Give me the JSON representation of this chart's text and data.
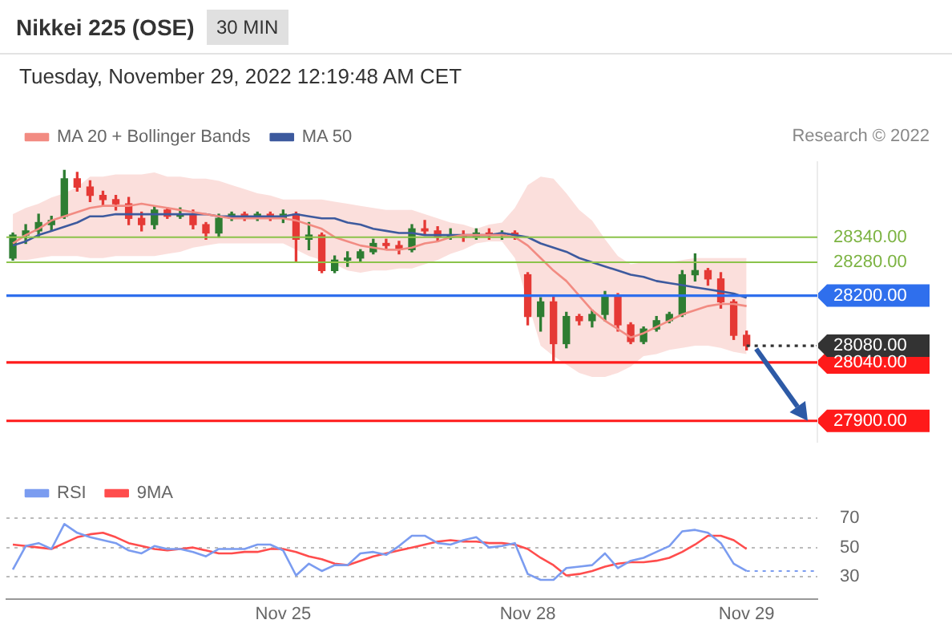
{
  "chart_data": [
    {
      "type": "candlestick",
      "title": "Nikkei 225 (OSE)",
      "subtitle": "Tuesday, November 29, 2022 12:19:48 AM CET",
      "annotations": [
        "30 MIN",
        "Research © 2022"
      ],
      "categories": [
        null,
        null,
        null,
        null,
        null,
        null,
        null,
        null,
        null,
        null,
        null,
        null,
        null,
        null,
        null,
        null,
        null,
        null,
        null,
        null,
        null,
        null,
        null,
        null,
        null,
        null,
        null,
        null,
        null,
        null,
        null,
        null,
        null,
        null,
        null,
        null,
        null,
        null,
        null,
        null,
        null,
        null,
        null,
        null,
        null,
        null,
        null,
        null,
        null,
        null,
        null,
        null,
        null,
        null,
        null,
        null,
        null,
        null,
        null,
        null,
        null,
        null,
        null
      ],
      "ohlc": [
        [
          28290,
          28350,
          28285,
          28345
        ],
        [
          28345,
          28370,
          28325,
          28355
        ],
        [
          28355,
          28395,
          28340,
          28375
        ],
        [
          28370,
          28390,
          28355,
          28380
        ],
        [
          28390,
          28500,
          28385,
          28480
        ],
        [
          28480,
          28495,
          28450,
          28460
        ],
        [
          28460,
          28475,
          28425,
          28440
        ],
        [
          28440,
          28450,
          28415,
          28430
        ],
        [
          28430,
          28440,
          28405,
          28420
        ],
        [
          28420,
          28435,
          28370,
          28385
        ],
        [
          28385,
          28400,
          28355,
          28370
        ],
        [
          28370,
          28415,
          28360,
          28405
        ],
        [
          28405,
          28410,
          28385,
          28390
        ],
        [
          28390,
          28410,
          28385,
          28395
        ],
        [
          28395,
          28405,
          28360,
          28370
        ],
        [
          28370,
          28375,
          28335,
          28350
        ],
        [
          28350,
          28395,
          28340,
          28385
        ],
        [
          28385,
          28400,
          28380,
          28395
        ],
        [
          28395,
          28400,
          28380,
          28385
        ],
        [
          28385,
          28400,
          28380,
          28395
        ],
        [
          28395,
          28400,
          28380,
          28385
        ],
        [
          28385,
          28405,
          28375,
          28395
        ],
        [
          28395,
          28400,
          28280,
          28335
        ],
        [
          28335,
          28375,
          28310,
          28345
        ],
        [
          28345,
          28350,
          28255,
          28260
        ],
        [
          28260,
          28295,
          28255,
          28285
        ],
        [
          28285,
          28305,
          28270,
          28290
        ],
        [
          28290,
          28310,
          28280,
          28305
        ],
        [
          28305,
          28335,
          28300,
          28325
        ],
        [
          28325,
          28335,
          28310,
          28320
        ],
        [
          28320,
          28330,
          28300,
          28310
        ],
        [
          28310,
          28370,
          28305,
          28360
        ],
        [
          28360,
          28380,
          28345,
          28355
        ],
        [
          28355,
          28365,
          28330,
          28340
        ],
        [
          28340,
          28360,
          28335,
          28345
        ],
        [
          28345,
          28355,
          28330,
          28340
        ],
        [
          28340,
          28360,
          28335,
          28350
        ],
        [
          28350,
          28360,
          28335,
          28345
        ],
        [
          28345,
          28355,
          28335,
          28350
        ],
        [
          28350,
          28355,
          28335,
          28345
        ],
        [
          28250,
          28255,
          28130,
          28150
        ],
        [
          28150,
          28195,
          28115,
          28185
        ],
        [
          28185,
          28200,
          28040,
          28085
        ],
        [
          28085,
          28160,
          28075,
          28150
        ],
        [
          28150,
          28155,
          28130,
          28140
        ],
        [
          28140,
          28165,
          28125,
          28155
        ],
        [
          28155,
          28210,
          28140,
          28200
        ],
        [
          28200,
          28205,
          28115,
          28130
        ],
        [
          28130,
          28135,
          28085,
          28090
        ],
        [
          28090,
          28125,
          28085,
          28120
        ],
        [
          28120,
          28150,
          28115,
          28140
        ],
        [
          28140,
          28160,
          28135,
          28155
        ],
        [
          28155,
          28260,
          28150,
          28250
        ],
        [
          28250,
          28300,
          28235,
          28260
        ],
        [
          28260,
          28265,
          28225,
          28240
        ],
        [
          28240,
          28255,
          28170,
          28185
        ],
        [
          28185,
          28190,
          28095,
          28105
        ],
        [
          28105,
          28115,
          28070,
          28080
        ],
        null,
        null,
        null,
        null,
        null
      ],
      "colors": [
        "#2e7d32",
        "#2e7d32",
        "#2e7d32",
        "#2e7d32",
        "#2e7d32",
        "#e53935",
        "#e53935",
        "#e53935",
        "#e53935",
        "#e53935",
        "#e53935",
        "#2e7d32",
        "#e53935",
        "#2e7d32",
        "#e53935",
        "#e53935",
        "#2e7d32",
        "#2e7d32",
        "#e53935",
        "#2e7d32",
        "#e53935",
        "#2e7d32",
        "#e53935",
        "#2e7d32",
        "#e53935",
        "#2e7d32",
        "#2e7d32",
        "#2e7d32",
        "#2e7d32",
        "#e53935",
        "#e53935",
        "#2e7d32",
        "#e53935",
        "#e53935",
        "#2e7d32",
        "#e53935",
        "#2e7d32",
        "#e53935",
        "#2e7d32",
        "#e53935",
        "#e53935",
        "#2e7d32",
        "#e53935",
        "#2e7d32",
        "#e53935",
        "#2e7d32",
        "#2e7d32",
        "#e53935",
        "#e53935",
        "#2e7d32",
        "#2e7d32",
        "#2e7d32",
        "#2e7d32",
        "#2e7d32",
        "#e53935",
        "#e53935",
        "#e53935",
        "#e53935",
        null,
        null,
        null,
        null,
        null
      ],
      "series": [
        {
          "name": "MA 20 + Bollinger Bands",
          "type": "line",
          "color": "#f28b82",
          "values": [
            28325,
            28345,
            28360,
            28380,
            28390,
            28400,
            28410,
            28415,
            28415,
            28415,
            28420,
            28415,
            28410,
            28405,
            28400,
            28395,
            28390,
            28385,
            28385,
            28385,
            28385,
            28385,
            28380,
            28370,
            28360,
            28340,
            28330,
            28320,
            28315,
            28310,
            28310,
            28315,
            28325,
            28330,
            28340,
            28345,
            28345,
            28345,
            28345,
            28340,
            28320,
            28290,
            28260,
            28235,
            28200,
            28165,
            28140,
            28120,
            28100,
            28110,
            28125,
            28140,
            28155,
            28165,
            28175,
            28180,
            28180,
            28175,
            null,
            null,
            null,
            null,
            null
          ],
          "upper": [
            28395,
            28410,
            28420,
            28435,
            28445,
            28460,
            28485,
            28485,
            28490,
            28490,
            28490,
            28495,
            28485,
            28485,
            28480,
            28480,
            28475,
            28465,
            28455,
            28445,
            28440,
            28430,
            28430,
            28430,
            28430,
            28425,
            28420,
            28415,
            28410,
            28405,
            28405,
            28405,
            28395,
            28385,
            28375,
            28370,
            28360,
            28370,
            28375,
            28410,
            28465,
            28485,
            28480,
            28445,
            28405,
            28380,
            28335,
            28295,
            28275,
            28280,
            28280,
            28280,
            28285,
            28290,
            28290,
            28290,
            28290,
            28290,
            null,
            null,
            null,
            null,
            null
          ],
          "lower": [
            28285,
            28285,
            28290,
            28295,
            28295,
            28295,
            28290,
            28290,
            28295,
            28295,
            28295,
            28295,
            28300,
            28305,
            28315,
            28320,
            28325,
            28325,
            28325,
            28325,
            28325,
            28325,
            28310,
            28295,
            28285,
            28275,
            28260,
            28255,
            28260,
            28260,
            28265,
            28265,
            28275,
            28285,
            28300,
            28310,
            28325,
            28330,
            28330,
            28290,
            28185,
            28080,
            28055,
            28035,
            28015,
            28005,
            28005,
            28015,
            28030,
            28055,
            28060,
            28070,
            28075,
            28080,
            28080,
            28075,
            28065,
            28060,
            null,
            null,
            null,
            null,
            null
          ]
        },
        {
          "name": "MA 50",
          "type": "line",
          "color": "#3d5a9e",
          "values": [
            28320,
            28330,
            28345,
            28355,
            28365,
            28375,
            28390,
            28390,
            28395,
            28395,
            28395,
            28395,
            28395,
            28395,
            28395,
            28395,
            28390,
            28390,
            28390,
            28390,
            28390,
            28390,
            28395,
            28390,
            28385,
            28385,
            28375,
            28370,
            28360,
            28355,
            28350,
            28350,
            28345,
            28345,
            28345,
            28345,
            28345,
            28345,
            28350,
            28345,
            28340,
            28325,
            28315,
            28305,
            28290,
            28280,
            28270,
            28260,
            28250,
            28245,
            28235,
            28230,
            28225,
            28220,
            28215,
            28210,
            28205,
            28195,
            null,
            null,
            null,
            null,
            null
          ]
        }
      ],
      "ylim": [
        27850,
        28520
      ],
      "yticks": [
        {
          "value": 27900,
          "label": "27900.00"
        },
        {
          "value": 28040,
          "label": "28040.00"
        },
        {
          "value": 28080,
          "label": "28080.00"
        },
        {
          "value": 28200,
          "label": "28200.00"
        },
        {
          "value": 28280,
          "label": "28280.00"
        },
        {
          "value": 28340,
          "label": "28340.00"
        }
      ],
      "ref_lines": [
        {
          "axis": "y",
          "value": 28340,
          "color": "#8bc34a"
        },
        {
          "axis": "y",
          "value": 28280,
          "color": "#8bc34a"
        },
        {
          "axis": "y",
          "value": 28200,
          "color": "#2f6fed"
        },
        {
          "axis": "y",
          "value": 28080,
          "color": "#333333",
          "line_style": "dotted"
        },
        {
          "axis": "y",
          "value": 28040,
          "color": "#ff1a1a"
        },
        {
          "axis": "y",
          "value": 27900,
          "color": "#ff1a1a"
        }
      ],
      "legend": "top left",
      "tick_labels": "y",
      "marker": "none"
    },
    {
      "type": "line",
      "categories": [
        null,
        null,
        null,
        null,
        null,
        null,
        null,
        null,
        null,
        null,
        null,
        null,
        null,
        null,
        null,
        null,
        null,
        null,
        null,
        null,
        null,
        "Nov 25",
        null,
        null,
        null,
        null,
        null,
        null,
        null,
        null,
        null,
        null,
        null,
        null,
        null,
        null,
        null,
        null,
        null,
        null,
        "Nov 28",
        null,
        null,
        null,
        null,
        null,
        null,
        null,
        null,
        null,
        null,
        null,
        null,
        null,
        null,
        null,
        null,
        "Nov 29",
        null,
        null,
        null,
        null,
        null
      ],
      "series": [
        {
          "name": "RSI",
          "color": "#7b9cf0",
          "values": [
            35,
            51,
            53,
            49,
            66,
            60,
            57,
            55,
            53,
            48,
            46,
            51,
            49,
            49,
            47,
            44,
            49,
            49,
            49,
            52,
            52,
            48,
            31,
            39,
            34,
            38,
            38,
            46,
            47,
            45,
            51,
            58,
            58,
            53,
            52,
            55,
            57,
            50,
            51,
            53,
            32,
            28,
            28,
            36,
            37,
            38,
            46,
            36,
            41,
            43,
            47,
            51,
            61,
            62,
            60,
            53,
            39,
            34,
            null,
            null,
            null,
            null,
            null
          ]
        },
        {
          "name": "9MA",
          "color": "#ff4d4d",
          "values": [
            52,
            51,
            50,
            49,
            53,
            57,
            59,
            60,
            57,
            53,
            51,
            49,
            48,
            49,
            50,
            48,
            46,
            46,
            47,
            47,
            49,
            49,
            47,
            44,
            42,
            39,
            38,
            41,
            44,
            46,
            48,
            50,
            52,
            54,
            55,
            54,
            54,
            53,
            53,
            52,
            49,
            43,
            38,
            31,
            32,
            34,
            37,
            39,
            40,
            40,
            41,
            43,
            47,
            52,
            58,
            58,
            55,
            49,
            null,
            null,
            null,
            null,
            null
          ]
        }
      ],
      "ylim": [
        15,
        70
      ],
      "yticks": [
        30,
        50,
        70
      ],
      "grid": "y",
      "ref_lines": [
        {
          "axis": "y",
          "value": 34,
          "color": "#7b9cf0",
          "line_style": "dotted"
        }
      ],
      "legend": "top left",
      "tick_labels": "xy",
      "marker": "none",
      "line_style": "solid"
    }
  ]
}
